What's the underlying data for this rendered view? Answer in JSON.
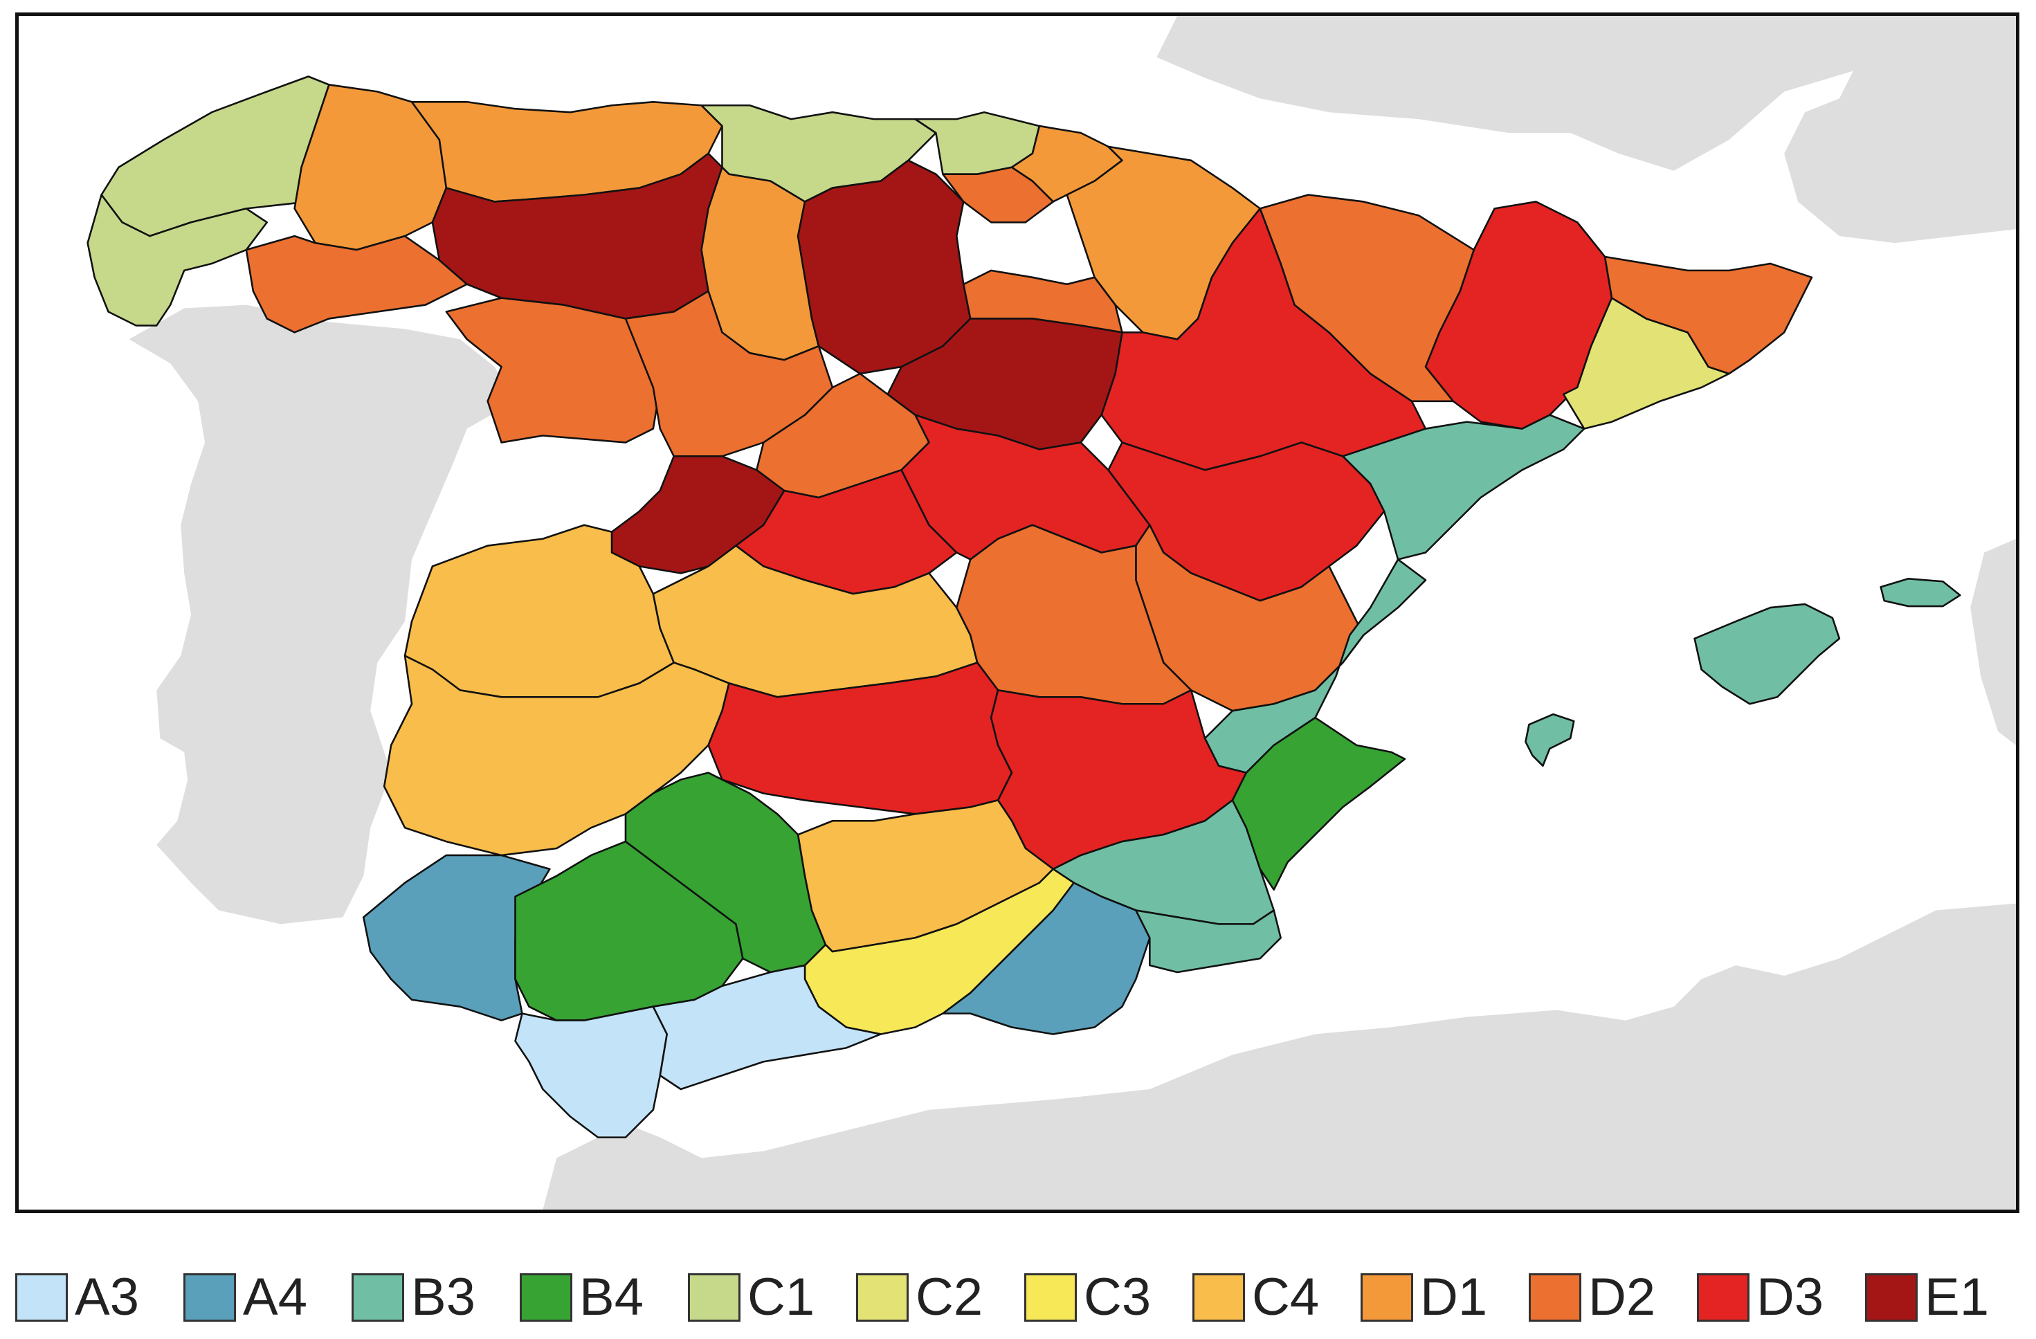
{
  "legend": [
    {
      "code": "A3",
      "color": "#c3e3f8"
    },
    {
      "code": "A4",
      "color": "#5aa0bb"
    },
    {
      "code": "B3",
      "color": "#70bfa5"
    },
    {
      "code": "B4",
      "color": "#36a333"
    },
    {
      "code": "C1",
      "color": "#c6d98b"
    },
    {
      "code": "C2",
      "color": "#e2e374"
    },
    {
      "code": "C3",
      "color": "#f7e858"
    },
    {
      "code": "C4",
      "color": "#f8bd4a"
    },
    {
      "code": "D1",
      "color": "#f4993a"
    },
    {
      "code": "D2",
      "color": "#ec7030"
    },
    {
      "code": "D3",
      "color": "#e42323"
    },
    {
      "code": "E1",
      "color": "#a41616"
    }
  ],
  "regions": [
    {
      "zone": "C1"
    },
    {
      "zone": "C1"
    },
    {
      "zone": "D1"
    },
    {
      "zone": "D2"
    },
    {
      "zone": "D1"
    },
    {
      "zone": "E1"
    },
    {
      "zone": "C1"
    },
    {
      "zone": "D1"
    },
    {
      "zone": "E1"
    },
    {
      "zone": "C1"
    },
    {
      "zone": "D2"
    },
    {
      "zone": "D1"
    },
    {
      "zone": "D1"
    },
    {
      "zone": "D2"
    },
    {
      "zone": "D3"
    },
    {
      "zone": "D3"
    },
    {
      "zone": "D2"
    },
    {
      "zone": "C2"
    },
    {
      "zone": "D2"
    },
    {
      "zone": "D2"
    },
    {
      "zone": "D2"
    },
    {
      "zone": "E1"
    },
    {
      "zone": "D2"
    },
    {
      "zone": "E1"
    },
    {
      "zone": "D3"
    },
    {
      "zone": "D3"
    },
    {
      "zone": "D3"
    },
    {
      "zone": "D2"
    },
    {
      "zone": "B3"
    },
    {
      "zone": "C4"
    },
    {
      "zone": "C4"
    },
    {
      "zone": "D2"
    },
    {
      "zone": "B3"
    },
    {
      "zone": "C4"
    },
    {
      "zone": "D3"
    },
    {
      "zone": "D3"
    },
    {
      "zone": "B3"
    },
    {
      "zone": "B4"
    },
    {
      "zone": "A4"
    },
    {
      "zone": "B4"
    },
    {
      "zone": "B4"
    },
    {
      "zone": "C4"
    },
    {
      "zone": "C3"
    },
    {
      "zone": "A4"
    },
    {
      "zone": "B3"
    },
    {
      "zone": "A3"
    },
    {
      "zone": "A3"
    },
    {
      "zone": "B3"
    },
    {
      "zone": "B3"
    },
    {
      "zone": "B3"
    }
  ]
}
